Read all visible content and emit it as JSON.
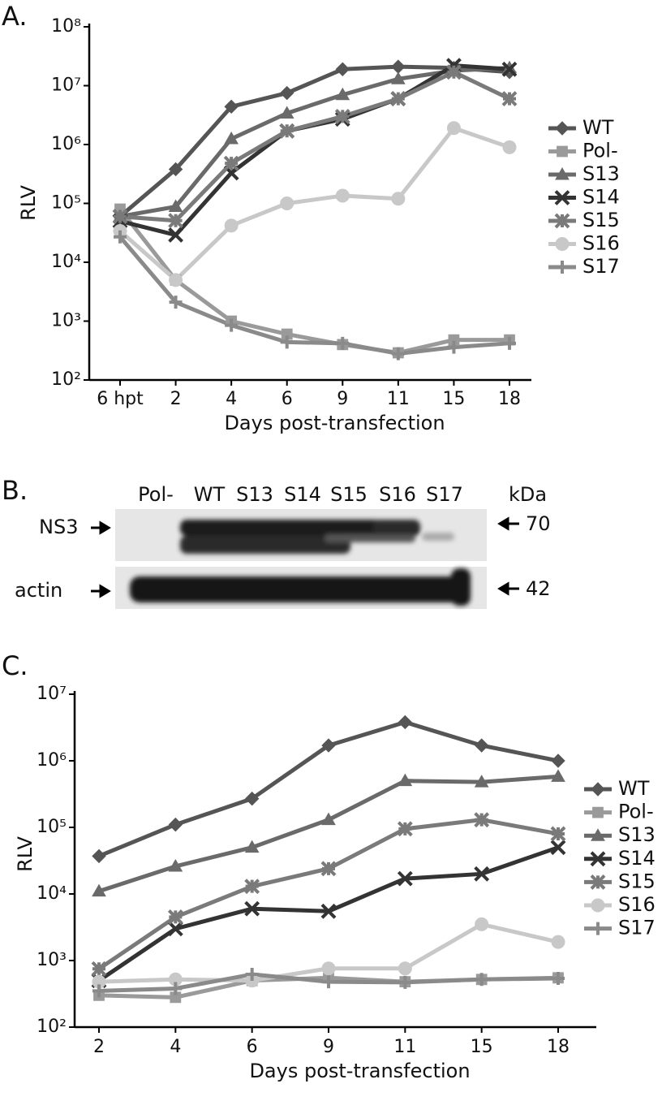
{
  "panels": [
    "A.",
    "B.",
    "C."
  ],
  "chart_data": [
    {
      "type": "line",
      "x_label": "Days post-transfection",
      "y_label": "RLV",
      "yscale": "log",
      "legend": "right",
      "categories": [
        "6 hpt",
        "2",
        "4",
        "6",
        "9",
        "11",
        "15",
        "18"
      ],
      "ylim": [
        100,
        100000000
      ],
      "yticks": [
        {
          "value": 100,
          "label": "10²"
        },
        {
          "value": 1000,
          "label": "10³"
        },
        {
          "value": 10000,
          "label": "10⁴"
        },
        {
          "value": 100000,
          "label": "10⁵"
        },
        {
          "value": 1000000,
          "label": "10⁶"
        },
        {
          "value": 10000000,
          "label": "10⁷"
        },
        {
          "value": 100000000,
          "label": "10⁸"
        }
      ],
      "series": [
        {
          "name": "WT",
          "color": "#555555",
          "marker": "diamond",
          "values": [
            60000,
            380000,
            4400000,
            7500000,
            19000000,
            21000000,
            20000000,
            17000000
          ]
        },
        {
          "name": "Pol-",
          "color": "#9a9a9a",
          "marker": "square",
          "values": [
            80000,
            5000,
            1000,
            600,
            400,
            290,
            480,
            480
          ]
        },
        {
          "name": "S13",
          "color": "#6a6a6a",
          "marker": "triangle",
          "values": [
            60000,
            88000,
            1250000,
            3400000,
            7000000,
            13000000,
            18000000,
            20000000
          ]
        },
        {
          "name": "S14",
          "color": "#333333",
          "marker": "x",
          "values": [
            50000,
            29000,
            330000,
            1700000,
            2700000,
            6000000,
            22000000,
            19000000
          ]
        },
        {
          "name": "S15",
          "color": "#7a7a7a",
          "marker": "asterisk",
          "values": [
            60000,
            51000,
            480000,
            1700000,
            3000000,
            6000000,
            17000000,
            6000000
          ]
        },
        {
          "name": "S16",
          "color": "#c8c8c8",
          "marker": "circle",
          "values": [
            34000,
            5000,
            42000,
            100000,
            135000,
            120000,
            1900000,
            900000
          ]
        },
        {
          "name": "S17",
          "color": "#8a8a8a",
          "marker": "plus",
          "values": [
            27000,
            2100,
            850,
            440,
            420,
            280,
            360,
            420
          ]
        }
      ]
    },
    {
      "type": "line",
      "x_label": "Days post-transfection",
      "y_label": "RLV",
      "yscale": "log",
      "legend": "right",
      "categories": [
        "2",
        "4",
        "6",
        "9",
        "11",
        "15",
        "18"
      ],
      "ylim": [
        100,
        10000000
      ],
      "yticks": [
        {
          "value": 100,
          "label": "10²"
        },
        {
          "value": 1000,
          "label": "10³"
        },
        {
          "value": 10000,
          "label": "10⁴"
        },
        {
          "value": 100000,
          "label": "10⁵"
        },
        {
          "value": 1000000,
          "label": "10⁶"
        },
        {
          "value": 10000000,
          "label": "10⁷"
        }
      ],
      "series": [
        {
          "name": "WT",
          "color": "#555555",
          "marker": "diamond",
          "values": [
            37000,
            110000,
            270000,
            1700000,
            3800000,
            1700000,
            1000000
          ]
        },
        {
          "name": "Pol-",
          "color": "#9a9a9a",
          "marker": "square",
          "values": [
            300,
            280,
            500,
            550,
            480,
            520,
            550
          ]
        },
        {
          "name": "S13",
          "color": "#6a6a6a",
          "marker": "triangle",
          "values": [
            11000,
            26000,
            50000,
            130000,
            500000,
            480000,
            580000
          ]
        },
        {
          "name": "S14",
          "color": "#333333",
          "marker": "x",
          "values": [
            500,
            3000,
            6000,
            5500,
            17000,
            20000,
            50000
          ]
        },
        {
          "name": "S15",
          "color": "#7a7a7a",
          "marker": "asterisk",
          "values": [
            750,
            4500,
            13000,
            24000,
            95000,
            130000,
            80000
          ]
        },
        {
          "name": "S16",
          "color": "#c8c8c8",
          "marker": "circle",
          "values": [
            480,
            520,
            500,
            760,
            760,
            3500,
            1900
          ]
        },
        {
          "name": "S17",
          "color": "#8a8a8a",
          "marker": "plus",
          "values": [
            350,
            380,
            620,
            480,
            470,
            520,
            540
          ]
        }
      ]
    }
  ],
  "blot": {
    "lanes": [
      "Pol-",
      "WT",
      "S13",
      "S14",
      "S15",
      "S16",
      "S17"
    ],
    "unit": "kDa",
    "rows": [
      {
        "label": "NS3",
        "size": 70
      },
      {
        "label": "actin",
        "size": 42
      }
    ]
  }
}
